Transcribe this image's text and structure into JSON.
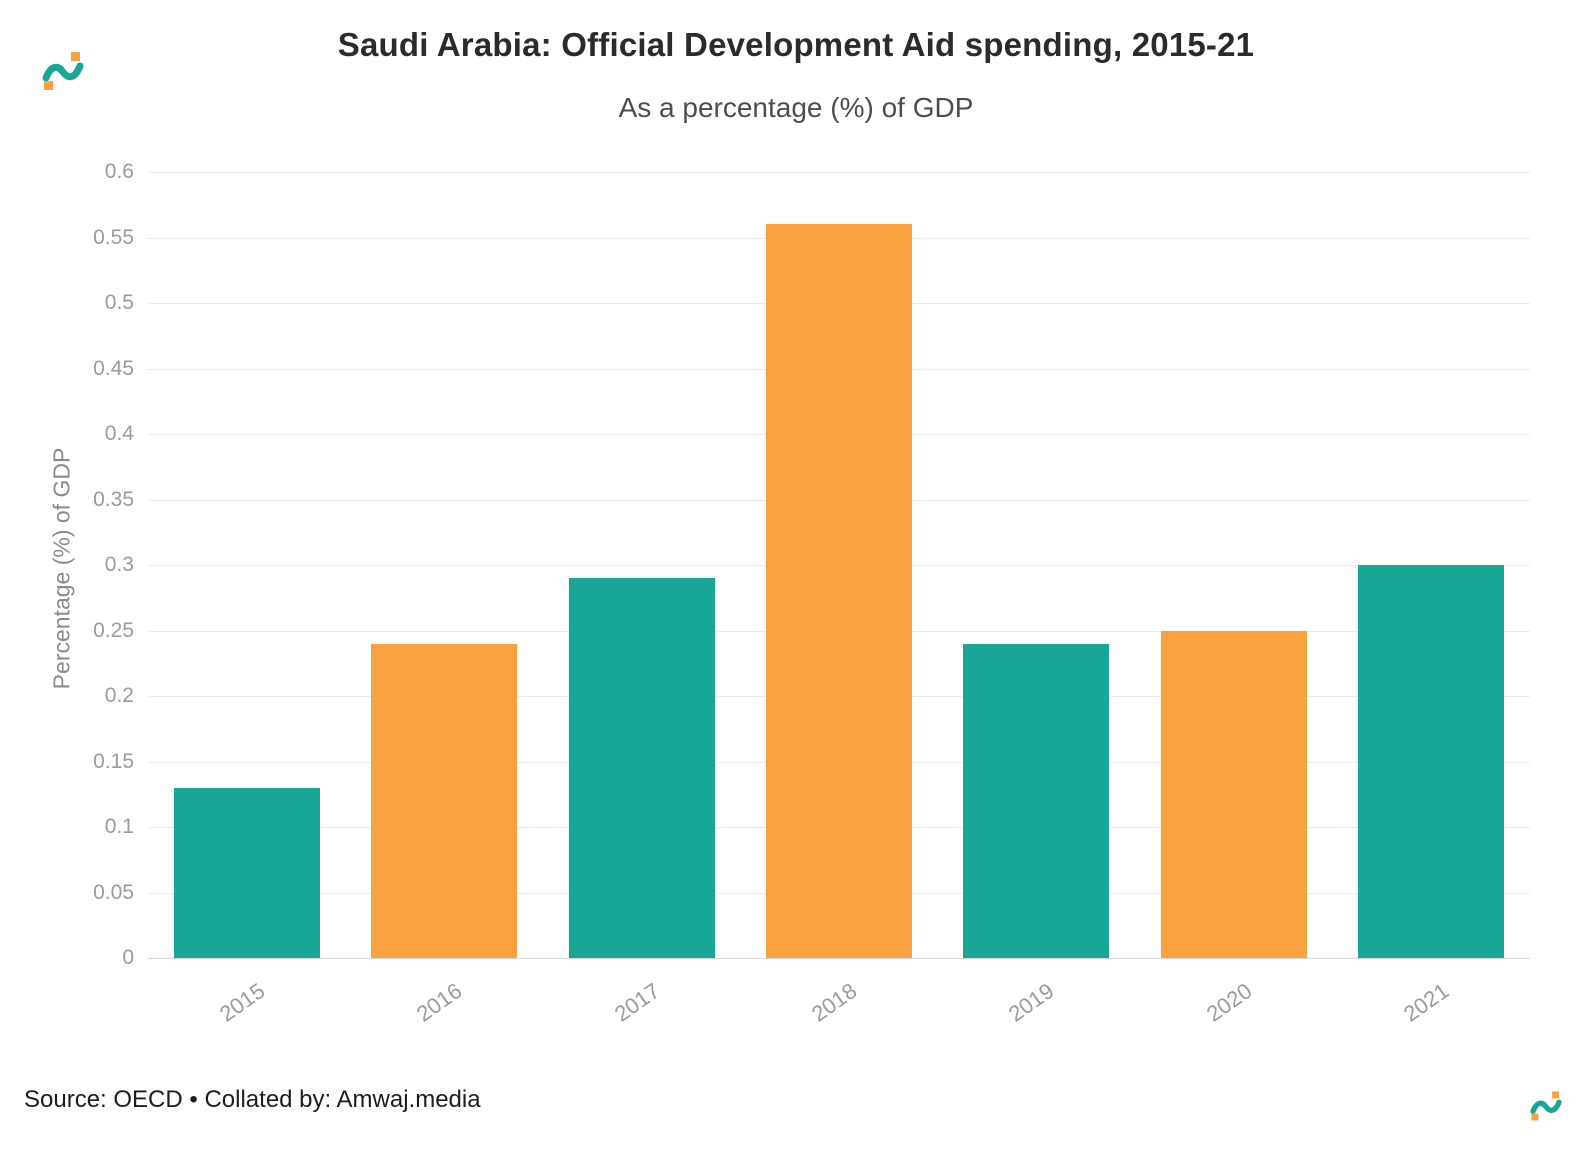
{
  "header": {
    "title": "Saudi Arabia: Official Development Aid spending, 2015-21",
    "subtitle": "As a percentage (%) of GDP"
  },
  "footer": {
    "source": "Source: OECD • Collated by: Amwaj.media"
  },
  "branding": {
    "logo_name": "amwaj-media-logo",
    "teal": "#18a795",
    "orange": "#f9a13e"
  },
  "palette": {
    "teal": "#18a795",
    "orange": "#f9a13e"
  },
  "chart_data": {
    "type": "bar",
    "title": "Saudi Arabia: Official Development Aid spending, 2015-21",
    "subtitle": "As a percentage (%) of GDP",
    "categories": [
      "2015",
      "2016",
      "2017",
      "2018",
      "2019",
      "2020",
      "2021"
    ],
    "values": [
      0.13,
      0.24,
      0.29,
      0.56,
      0.24,
      0.25,
      0.3
    ],
    "bar_colors": [
      "teal",
      "orange",
      "teal",
      "orange",
      "teal",
      "orange",
      "teal"
    ],
    "xlabel": "",
    "ylabel": "Percentage (%) of GDP",
    "ylim": [
      0,
      0.6
    ],
    "yticks": [
      0,
      0.05,
      0.1,
      0.15,
      0.2,
      0.25,
      0.3,
      0.35,
      0.4,
      0.45,
      0.5,
      0.55,
      0.6
    ],
    "ytick_labels": [
      "0",
      "0.05",
      "0.1",
      "0.15",
      "0.2",
      "0.25",
      "0.3",
      "0.35",
      "0.4",
      "0.45",
      "0.5",
      "0.55",
      "0.6"
    ],
    "grid": true,
    "legend": "none"
  }
}
